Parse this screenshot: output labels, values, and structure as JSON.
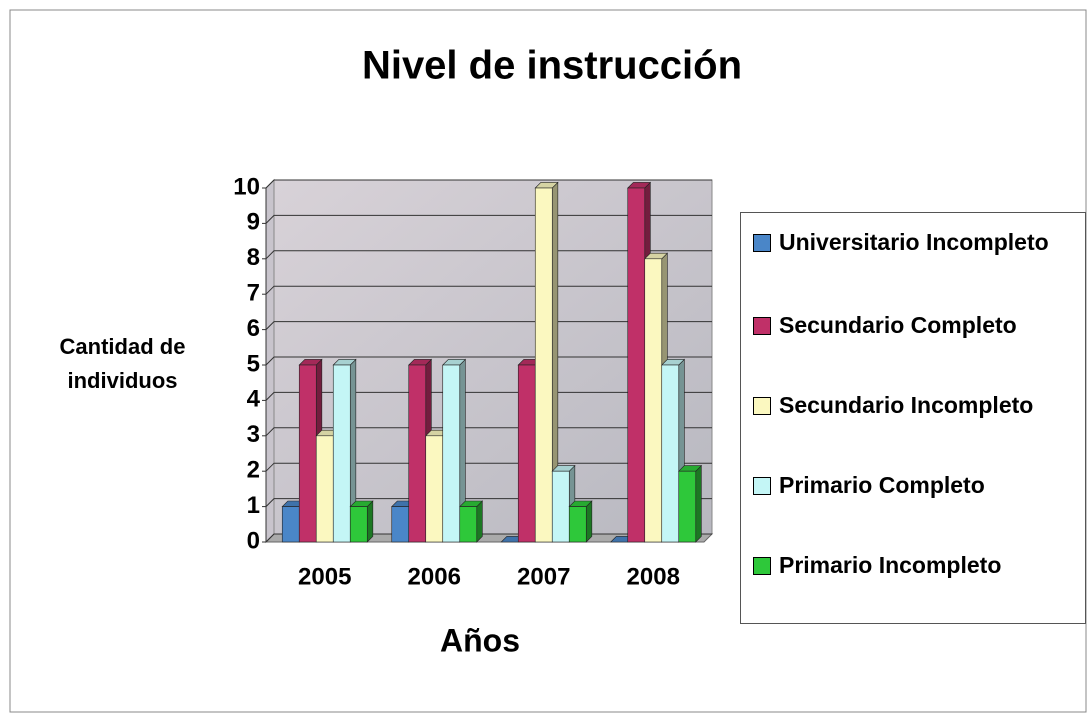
{
  "chart_data": {
    "type": "bar3d",
    "title": "Nivel de instrucción",
    "x_label": "Años",
    "y_label": "Cantidad de individuos",
    "categories": [
      "2005",
      "2006",
      "2007",
      "2008"
    ],
    "series": [
      {
        "name": "Universitario Incompleto",
        "color": "#4a86c8",
        "values": [
          1,
          1,
          0,
          0
        ]
      },
      {
        "name": "Secundario Completo",
        "color": "#c03068",
        "values": [
          5,
          5,
          5,
          10
        ]
      },
      {
        "name": "Secundario Incompleto",
        "color": "#fbf8c0",
        "values": [
          3,
          3,
          10,
          8
        ]
      },
      {
        "name": "Primario Completo",
        "color": "#c4f6f6",
        "values": [
          5,
          5,
          2,
          5
        ]
      },
      {
        "name": "Primario Incompleto",
        "color": "#2ec83a",
        "values": [
          1,
          1,
          1,
          2
        ]
      }
    ],
    "ylim": [
      0,
      10
    ],
    "yticks": [
      0,
      1,
      2,
      3,
      4,
      5,
      6,
      7,
      8,
      9,
      10
    ],
    "grid": true
  }
}
